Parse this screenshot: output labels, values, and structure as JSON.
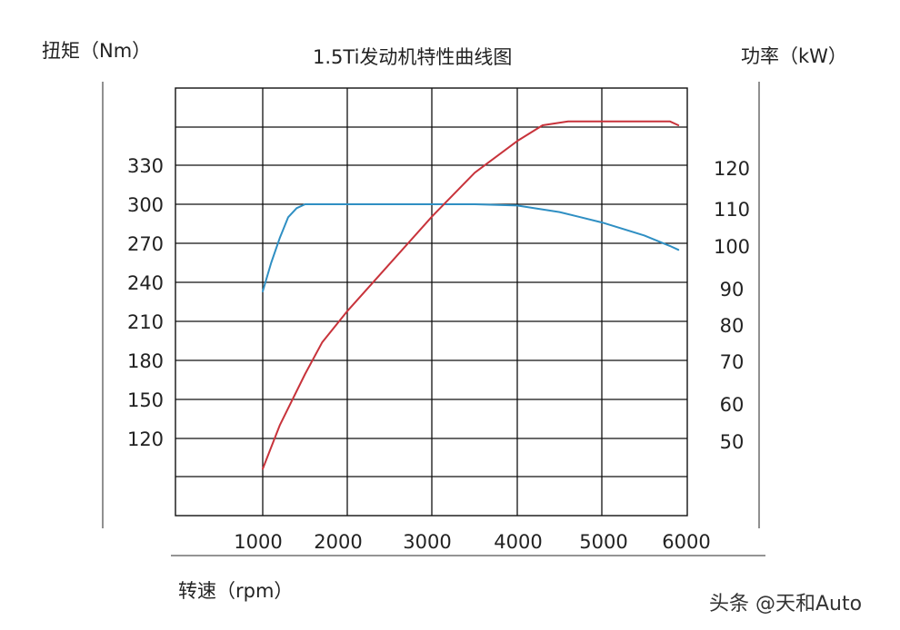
{
  "chart_data": {
    "type": "line",
    "title": "1.5Ti发动机特性曲线图",
    "ylabel_left": "扭矩（Nm）",
    "ylabel_right": "功率（kW）",
    "xlabel": "转速（rpm）",
    "x_ticks": [
      "1000",
      "2000",
      "3000",
      "4000",
      "5000",
      "6000"
    ],
    "y_left_ticks": [
      "330",
      "300",
      "270",
      "240",
      "210",
      "180",
      "150",
      "120"
    ],
    "y_right_ticks": [
      "120",
      "110",
      "100",
      "90",
      "80",
      "70",
      "60",
      "50"
    ],
    "xlim": [
      0,
      6000
    ],
    "grid": true,
    "series": [
      {
        "axis": "left",
        "color": "#2f8fc3",
        "points": [
          [
            1000,
            233
          ],
          [
            1100,
            255
          ],
          [
            1200,
            274
          ],
          [
            1300,
            290
          ],
          [
            1400,
            297
          ],
          [
            1500,
            300
          ],
          [
            2000,
            300
          ],
          [
            2500,
            300
          ],
          [
            3000,
            300
          ],
          [
            3500,
            300
          ],
          [
            4000,
            299
          ],
          [
            4500,
            294
          ],
          [
            5000,
            286
          ],
          [
            5500,
            276
          ],
          [
            5800,
            268
          ],
          [
            5900,
            265
          ]
        ]
      },
      {
        "axis": "right",
        "color": "#c8333b",
        "points": [
          [
            1000,
            43
          ],
          [
            1200,
            54
          ],
          [
            1500,
            67
          ],
          [
            1700,
            75
          ],
          [
            2000,
            83
          ],
          [
            2500,
            95
          ],
          [
            3000,
            107
          ],
          [
            3500,
            118
          ],
          [
            4000,
            126
          ],
          [
            4300,
            130
          ],
          [
            4600,
            131
          ],
          [
            5000,
            131
          ],
          [
            5500,
            131
          ],
          [
            5800,
            131
          ],
          [
            5900,
            130
          ]
        ]
      }
    ]
  },
  "watermark": "头条 @天和Auto"
}
